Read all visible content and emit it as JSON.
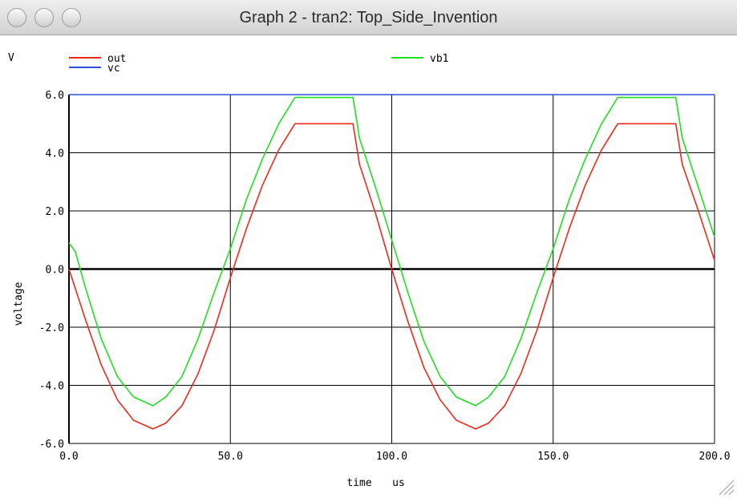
{
  "window": {
    "title": "Graph 2 - tran2: Top_Side_Invention"
  },
  "icons": {
    "close": "circle-button-icon",
    "minimize": "circle-button-icon",
    "zoom": "circle-button-icon",
    "resize": "resize-grip-icon"
  },
  "chart_data": {
    "type": "line",
    "title": "",
    "unit_label": "V",
    "xlabel": "time",
    "xunit": "us",
    "ylabel": "voltage",
    "xlim": [
      0,
      200
    ],
    "ylim": [
      -6,
      6
    ],
    "x_ticks": [
      "0.0",
      "50.0",
      "100.0",
      "150.0",
      "200.0"
    ],
    "y_ticks": [
      "6.0",
      "4.0",
      "2.0",
      "0.0",
      "-2.0",
      "-4.0",
      "-6.0"
    ],
    "grid": true,
    "legend": [
      {
        "name": "out",
        "color": "#ee2a1c"
      },
      {
        "name": "vc",
        "color": "#2b4fe0"
      },
      {
        "name": "vb1",
        "color": "#1fe01f"
      }
    ],
    "series": [
      {
        "name": "out",
        "color": "#ee2a1c",
        "x": [
          0,
          5,
          10,
          15,
          20,
          26,
          30,
          35,
          40,
          45,
          50,
          55,
          60,
          65,
          70,
          75,
          80,
          85,
          88,
          90,
          95,
          100,
          105,
          110,
          115,
          120,
          126,
          130,
          135,
          140,
          145,
          150,
          155,
          160,
          165,
          170,
          175,
          180,
          185,
          188,
          190,
          195,
          200
        ],
        "y": [
          0.0,
          -1.7,
          -3.3,
          -4.5,
          -5.2,
          -5.5,
          -5.3,
          -4.7,
          -3.6,
          -2.1,
          -0.3,
          1.4,
          2.9,
          4.1,
          5.0,
          5.0,
          5.0,
          5.0,
          5.0,
          3.6,
          1.9,
          0.0,
          -1.8,
          -3.4,
          -4.5,
          -5.2,
          -5.5,
          -5.3,
          -4.7,
          -3.6,
          -2.1,
          -0.3,
          1.4,
          2.9,
          4.1,
          5.0,
          5.0,
          5.0,
          5.0,
          5.0,
          3.6,
          2.0,
          0.3
        ]
      },
      {
        "name": "vc",
        "color": "#2b4fe0",
        "x": [
          0,
          200
        ],
        "y": [
          6.0,
          6.0
        ]
      },
      {
        "name": "vb1",
        "color": "#1fe01f",
        "x": [
          0,
          2,
          5,
          10,
          15,
          20,
          26,
          30,
          35,
          40,
          45,
          50,
          55,
          60,
          65,
          70,
          75,
          80,
          85,
          88,
          90,
          95,
          100,
          105,
          110,
          115,
          120,
          126,
          130,
          135,
          140,
          145,
          150,
          155,
          160,
          165,
          170,
          175,
          180,
          185,
          188,
          190,
          195,
          200
        ],
        "y": [
          0.9,
          0.6,
          -0.6,
          -2.4,
          -3.7,
          -4.4,
          -4.7,
          -4.4,
          -3.7,
          -2.4,
          -0.8,
          0.7,
          2.4,
          3.8,
          5.0,
          5.9,
          5.9,
          5.9,
          5.9,
          5.9,
          4.5,
          2.8,
          1.0,
          -0.8,
          -2.5,
          -3.7,
          -4.4,
          -4.7,
          -4.4,
          -3.7,
          -2.4,
          -0.8,
          0.7,
          2.4,
          3.8,
          5.0,
          5.9,
          5.9,
          5.9,
          5.9,
          5.9,
          4.5,
          2.8,
          1.1
        ]
      }
    ]
  }
}
